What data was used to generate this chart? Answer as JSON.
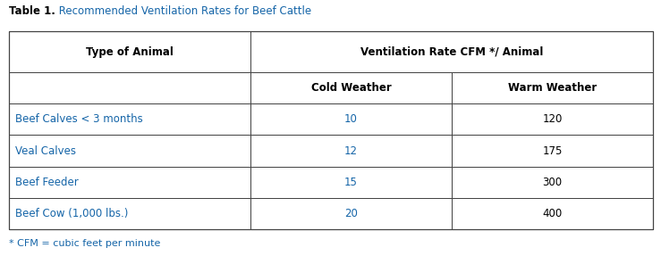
{
  "title_bold": "Table 1.",
  "title_regular": " Recommended Ventilation Rates for Beef Cattle",
  "col_header_1": "Type of Animal",
  "col_header_2": "Ventilation Rate CFM */ Animal",
  "col_header_2a": "Cold Weather",
  "col_header_2b": "Warm Weather",
  "rows": [
    {
      "animal": "Beef Calves < 3 months",
      "cold": "10",
      "warm": "120",
      "animal_color": "#1565a8",
      "cold_color": "#1565a8"
    },
    {
      "animal": "Veal Calves",
      "cold": "12",
      "warm": "175",
      "animal_color": "#1565a8",
      "cold_color": "#1565a8"
    },
    {
      "animal": "Beef Feeder",
      "cold": "15",
      "warm": "300",
      "animal_color": "#1565a8",
      "cold_color": "#1565a8"
    },
    {
      "animal": "Beef Cow (1,000 lbs.)",
      "cold": "20",
      "warm": "400",
      "animal_color": "#1565a8",
      "cold_color": "#1565a8"
    }
  ],
  "footnote": "* CFM = cubic feet per minute",
  "background_color": "#ffffff",
  "title_bold_color": "#000000",
  "title_regular_color": "#1565a8",
  "warm_color": "#000000",
  "footnote_color": "#1565a8",
  "font_size": 8.5,
  "title_font_size": 8.5
}
